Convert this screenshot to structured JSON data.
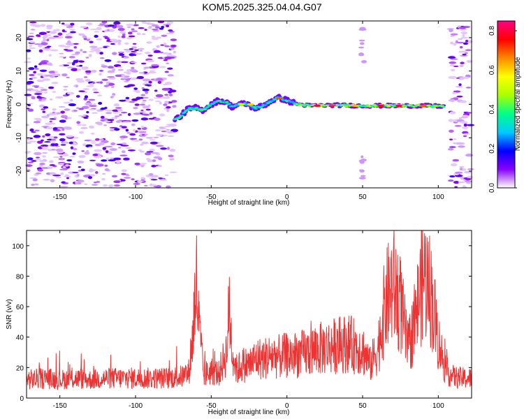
{
  "title": "KOM5.2025.325.04.04.G07",
  "chart_data": [
    {
      "type": "heatmap",
      "xlabel": "Height of straight line (km)",
      "ylabel": "Frequency (Hz)",
      "xlim": [
        -172,
        122
      ],
      "ylim": [
        -25,
        25
      ],
      "xticks": [
        -150,
        -100,
        -50,
        0,
        50,
        100
      ],
      "xtick_labels": [
        "-150",
        "-100",
        "-50",
        "0",
        "50",
        "100"
      ],
      "yticks": [
        -20,
        -10,
        0,
        10,
        20
      ],
      "ytick_labels": [
        "-20",
        "-10",
        "0",
        "10",
        "20"
      ],
      "colorbar": {
        "label": "Normalized spectral amplitude",
        "range": [
          0,
          0.85
        ],
        "ticks": [
          0.0,
          0.2,
          0.4,
          0.6,
          0.8
        ],
        "tick_labels": [
          "0.0",
          "0.2",
          "0.4",
          "0.6",
          "0.8"
        ],
        "colors": [
          "#ffffff",
          "#8800ff",
          "#0000ff",
          "#00ccff",
          "#00ff88",
          "#aaff00",
          "#ffff00",
          "#ff8800",
          "#ff0000",
          "#ff0088"
        ]
      },
      "signal_track": [
        {
          "x": -74,
          "f": -4.5
        },
        {
          "x": -70,
          "f": -3.5
        },
        {
          "x": -66,
          "f": -1.5
        },
        {
          "x": -60,
          "f": -1.0
        },
        {
          "x": -56,
          "f": -1.8
        },
        {
          "x": -50,
          "f": 0.0
        },
        {
          "x": -45,
          "f": 1.2
        },
        {
          "x": -40,
          "f": 0.6
        },
        {
          "x": -36,
          "f": -0.8
        },
        {
          "x": -32,
          "f": 0.0
        },
        {
          "x": -26,
          "f": 0.2
        },
        {
          "x": -22,
          "f": -1.2
        },
        {
          "x": -16,
          "f": -0.5
        },
        {
          "x": -10,
          "f": 1.2
        },
        {
          "x": -5,
          "f": 2.0
        },
        {
          "x": 0,
          "f": 1.2
        },
        {
          "x": 6,
          "f": 0.2
        },
        {
          "x": 15,
          "f": -0.4
        },
        {
          "x": 30,
          "f": -0.2
        },
        {
          "x": 50,
          "f": -0.4
        },
        {
          "x": 70,
          "f": -0.4
        },
        {
          "x": 90,
          "f": -0.4
        },
        {
          "x": 104,
          "f": -0.6
        }
      ],
      "hot_spots": [
        {
          "x": -62,
          "f": -1.5,
          "amp": 0.35
        },
        {
          "x": -55,
          "f": -1.5,
          "amp": 0.4
        },
        {
          "x": -30,
          "f": 0.0,
          "amp": 0.5
        },
        {
          "x": -24,
          "f": 0.0,
          "amp": 0.6
        },
        {
          "x": -5,
          "f": 1.8,
          "amp": 0.7
        },
        {
          "x": 20,
          "f": -0.4,
          "amp": 0.78
        },
        {
          "x": 30,
          "f": -0.3,
          "amp": 0.72
        },
        {
          "x": 45,
          "f": -0.4,
          "amp": 0.62
        },
        {
          "x": 62,
          "f": -0.4,
          "amp": 0.75
        },
        {
          "x": 74,
          "f": -0.4,
          "amp": 0.8
        },
        {
          "x": 90,
          "f": -0.4,
          "amp": 0.7
        }
      ]
    },
    {
      "type": "line",
      "xlabel": "Height of straight line (km)",
      "ylabel": "SNR (v/v)",
      "xlim": [
        -172,
        122
      ],
      "ylim": [
        0,
        110
      ],
      "xticks": [
        -150,
        -100,
        -50,
        0,
        50,
        100
      ],
      "xtick_labels": [
        "-150",
        "-100",
        "-50",
        "0",
        "50",
        "100"
      ],
      "yticks": [
        0,
        20,
        40,
        60,
        80,
        100
      ],
      "ytick_labels": [
        "0",
        "20",
        "40",
        "60",
        "80",
        "100"
      ],
      "color": "#ee3333",
      "series": [
        {
          "name": "SNR",
          "x": [
            -172,
            -160,
            -150,
            -140,
            -130,
            -120,
            -110,
            -100,
            -90,
            -80,
            -70,
            -65,
            -62,
            -60,
            -58,
            -55,
            -50,
            -45,
            -40,
            -38,
            -36,
            -33,
            -30,
            -25,
            -20,
            -15,
            -10,
            -5,
            0,
            10,
            20,
            30,
            40,
            50,
            55,
            60,
            65,
            70,
            75,
            80,
            85,
            90,
            95,
            100,
            105,
            110,
            115,
            122
          ],
          "values": [
            12,
            13,
            12,
            13,
            12,
            13,
            13,
            13,
            13,
            13,
            14,
            16,
            42,
            80,
            45,
            15,
            18,
            16,
            30,
            58,
            30,
            18,
            22,
            22,
            26,
            26,
            28,
            27,
            28,
            29,
            32,
            34,
            36,
            32,
            22,
            32,
            62,
            74,
            62,
            32,
            52,
            82,
            70,
            38,
            18,
            14,
            13,
            13
          ]
        }
      ]
    }
  ]
}
